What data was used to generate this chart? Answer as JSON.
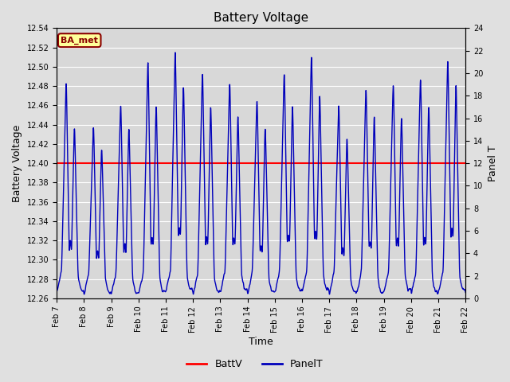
{
  "title": "Battery Voltage",
  "xlabel": "Time",
  "ylabel_left": "Battery Voltage",
  "ylabel_right": "Panel T",
  "annotation_text": "BA_met",
  "annotation_bg": "#FFFF99",
  "annotation_border": "#8B0000",
  "annotation_text_color": "#8B0000",
  "ylim_left": [
    12.26,
    12.54
  ],
  "ylim_right": [
    0,
    24
  ],
  "yticks_left": [
    12.26,
    12.28,
    12.3,
    12.32,
    12.34,
    12.36,
    12.38,
    12.4,
    12.42,
    12.44,
    12.46,
    12.48,
    12.5,
    12.52,
    12.54
  ],
  "yticks_right": [
    0,
    2,
    4,
    6,
    8,
    10,
    12,
    14,
    16,
    18,
    20,
    22,
    24
  ],
  "xtick_labels": [
    "Feb 7",
    "Feb 8",
    "Feb 9",
    "Feb 10",
    "Feb 11",
    "Feb 12",
    "Feb 13",
    "Feb 14",
    "Feb 15",
    "Feb 16",
    "Feb 17",
    "Feb 18",
    "Feb 19",
    "Feb 20",
    "Feb 21",
    "Feb 22"
  ],
  "battv_value": 12.4,
  "battv_color": "#FF0000",
  "panelt_color": "#0000BB",
  "bg_color": "#E0E0E0",
  "plot_bg_color": "#D8D8D8",
  "grid_color": "#FFFFFF",
  "legend_battv": "BattV",
  "legend_panelt": "PanelT",
  "figsize": [
    6.4,
    4.8
  ],
  "dpi": 100
}
